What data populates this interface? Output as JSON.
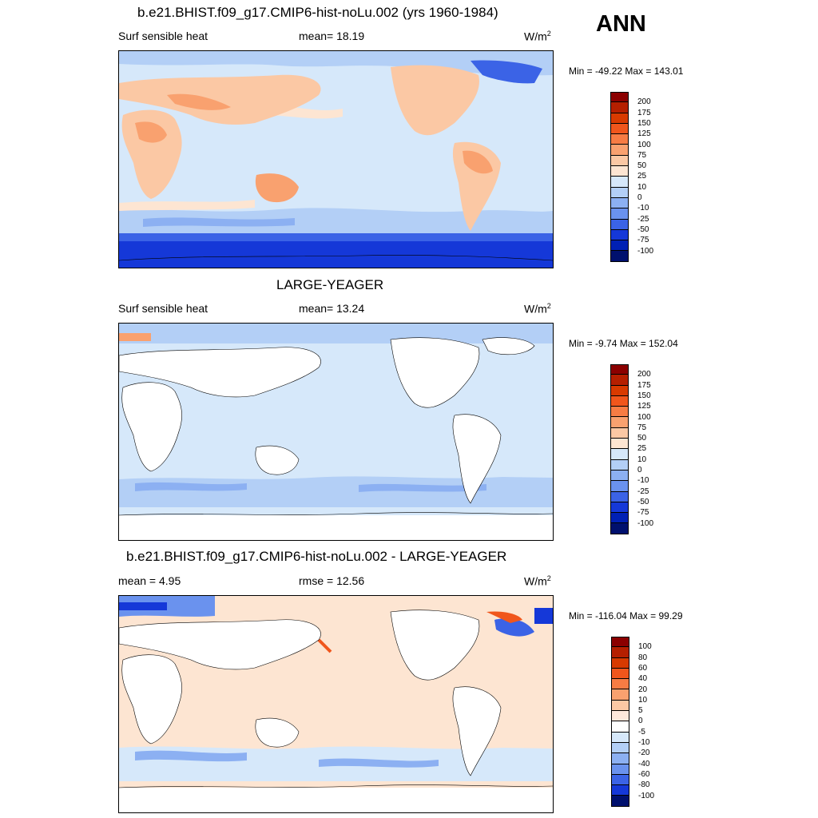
{
  "season": "ANN",
  "panels": [
    {
      "title": "b.e21.BHIST.f09_g17.CMIP6-hist-noLu.002 (yrs 1960-1984)",
      "left_text": "Surf sensible heat",
      "center_text": "mean=  18.19",
      "unit": "W/m",
      "unit_sup": "2",
      "minmax": "Min = -49.22 Max = 143.01",
      "colorbar": {
        "colors": [
          "#8b0000",
          "#b51f00",
          "#d83a00",
          "#f0561c",
          "#f77c44",
          "#f9a16f",
          "#fbc8a4",
          "#fde5d2",
          "#d6e8fa",
          "#b3cff6",
          "#8cb0f2",
          "#6a92ee",
          "#3b63e6",
          "#1538d8",
          "#0020b4",
          "#00106e"
        ],
        "labels": [
          "200",
          "175",
          "150",
          "125",
          "100",
          "75",
          "50",
          "25",
          "10",
          "0",
          "-10",
          "-25",
          "-50",
          "-75",
          "-100"
        ]
      }
    },
    {
      "title": "LARGE-YEAGER",
      "left_text": "Surf sensible heat",
      "center_text": "mean=  13.24",
      "unit": "W/m",
      "unit_sup": "2",
      "minmax": "Min =  -9.74 Max = 152.04",
      "colorbar": {
        "colors": [
          "#8b0000",
          "#b51f00",
          "#d83a00",
          "#f0561c",
          "#f77c44",
          "#f9a16f",
          "#fbc8a4",
          "#fde5d2",
          "#d6e8fa",
          "#b3cff6",
          "#8cb0f2",
          "#6a92ee",
          "#3b63e6",
          "#1538d8",
          "#0020b4",
          "#00106e"
        ],
        "labels": [
          "200",
          "175",
          "150",
          "125",
          "100",
          "75",
          "50",
          "25",
          "10",
          "0",
          "-10",
          "-25",
          "-50",
          "-75",
          "-100"
        ]
      }
    },
    {
      "title": "b.e21.BHIST.f09_g17.CMIP6-hist-noLu.002 - LARGE-YEAGER",
      "left_text": "mean =   4.95",
      "center_text": "rmse =  12.56",
      "unit": "W/m",
      "unit_sup": "2",
      "minmax": "Min = -116.04 Max =  99.29",
      "colorbar": {
        "colors": [
          "#8b0000",
          "#b51f00",
          "#d83a00",
          "#f0561c",
          "#f77c44",
          "#f9a16f",
          "#fbc8a4",
          "#fde8dc",
          "#ffffff",
          "#d6e8fa",
          "#b3cff6",
          "#8cb0f2",
          "#6a92ee",
          "#3b63e6",
          "#1538d8",
          "#00106e"
        ],
        "labels": [
          "100",
          "80",
          "60",
          "40",
          "20",
          "10",
          "5",
          "0",
          "-5",
          "-10",
          "-20",
          "-40",
          "-60",
          "-80",
          "-100"
        ]
      }
    }
  ],
  "map_colors": {
    "ocean_main": "#d6e8fa",
    "land_warm": "#fbc8a4",
    "land_hot": "#f9a16f",
    "cold_1": "#8cb0f2",
    "cold_2": "#3b63e6",
    "cold_3": "#1538d8",
    "diff_ocean": "#fde5d2",
    "diff_edge": "#f0561c",
    "land_mask": "#ffffff"
  }
}
